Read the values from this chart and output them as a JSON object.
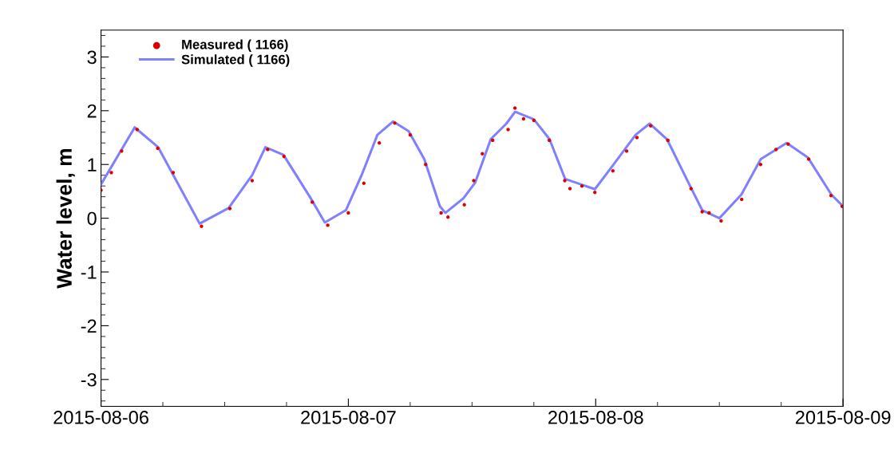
{
  "chart_data": {
    "type": "line",
    "ylabel": "Water level, m",
    "xlim": [
      "2015-08-06",
      "2015-08-09"
    ],
    "xticks": [
      {
        "value": "2015-08-06",
        "label": "2015-08-06"
      },
      {
        "value": "2015-08-07",
        "label": "2015-08-07"
      },
      {
        "value": "2015-08-08",
        "label": "2015-08-08"
      },
      {
        "value": "2015-08-09",
        "label": "2015-08-09"
      }
    ],
    "ylim": [
      -3.5,
      3.5
    ],
    "yticks": [
      -3,
      -2,
      -1,
      0,
      1,
      2,
      3
    ],
    "grid": false,
    "legend": "top left",
    "series": [
      {
        "name": "Measured ( 1166)",
        "type": "scatter",
        "marker": "circle",
        "color": "#dd0000",
        "x": [
          "2015-08-06T00:00",
          "2015-08-06T01:00",
          "2015-08-06T02:00",
          "2015-08-06T03:30",
          "2015-08-06T05:30",
          "2015-08-06T07:00",
          "2015-08-06T09:45",
          "2015-08-06T12:30",
          "2015-08-06T14:40",
          "2015-08-06T16:10",
          "2015-08-06T17:45",
          "2015-08-06T20:30",
          "2015-08-06T22:00",
          "2015-08-07T00:00",
          "2015-08-07T01:30",
          "2015-08-07T03:00",
          "2015-08-07T04:30",
          "2015-08-07T06:00",
          "2015-08-07T07:30",
          "2015-08-07T09:00",
          "2015-08-07T09:40",
          "2015-08-07T11:15",
          "2015-08-07T12:10",
          "2015-08-07T13:00",
          "2015-08-07T14:00",
          "2015-08-07T15:30",
          "2015-08-07T16:10",
          "2015-08-07T17:00",
          "2015-08-07T18:00",
          "2015-08-07T19:30",
          "2015-08-07T21:00",
          "2015-08-07T21:30",
          "2015-08-07T22:40",
          "2015-08-07T23:55",
          "2015-08-08T01:40",
          "2015-08-08T03:00",
          "2015-08-08T04:00",
          "2015-08-08T05:20",
          "2015-08-08T07:00",
          "2015-08-08T09:15",
          "2015-08-08T10:20",
          "2015-08-08T11:00",
          "2015-08-08T12:10",
          "2015-08-08T14:10",
          "2015-08-08T16:00",
          "2015-08-08T17:30",
          "2015-08-08T18:40",
          "2015-08-08T20:40",
          "2015-08-08T22:50",
          "2015-08-08T23:55"
        ],
        "values": [
          0.52,
          0.85,
          1.25,
          1.65,
          1.3,
          0.85,
          -0.15,
          0.18,
          0.7,
          1.28,
          1.15,
          0.3,
          -0.13,
          0.1,
          0.65,
          1.4,
          1.77,
          1.55,
          1.0,
          0.1,
          0.02,
          0.25,
          0.7,
          1.2,
          1.45,
          1.65,
          2.05,
          1.85,
          1.82,
          1.45,
          0.7,
          0.55,
          0.6,
          0.48,
          0.88,
          1.25,
          1.5,
          1.72,
          1.45,
          0.55,
          0.12,
          0.1,
          -0.05,
          0.35,
          1.0,
          1.28,
          1.38,
          1.1,
          0.42,
          0.22
        ]
      },
      {
        "name": "Simulated ( 1166)",
        "line_style": "solid",
        "color": "#8080ff",
        "x": [
          "2015-08-06T00:00",
          "2015-08-06T03:16",
          "2015-08-06T05:33",
          "2015-08-06T09:34",
          "2015-08-06T12:23",
          "2015-08-06T14:40",
          "2015-08-06T15:57",
          "2015-08-06T17:42",
          "2015-08-06T20:21",
          "2015-08-06T21:43",
          "2015-08-06T23:46",
          "2015-08-07T01:17",
          "2015-08-07T02:49",
          "2015-08-07T04:20",
          "2015-08-07T05:51",
          "2015-08-07T07:22",
          "2015-08-07T08:53",
          "2015-08-07T09:25",
          "2015-08-07T11:10",
          "2015-08-07T12:18",
          "2015-08-07T13:49",
          "2015-08-07T15:20",
          "2015-08-07T16:11",
          "2015-08-07T18:00",
          "2015-08-07T19:31",
          "2015-08-07T21:02",
          "2015-08-07T22:33",
          "2015-08-07T23:55",
          "2015-08-08T01:35",
          "2015-08-08T03:52",
          "2015-08-08T05:14",
          "2015-08-08T06:55",
          "2015-08-08T09:11",
          "2015-08-08T10:20",
          "2015-08-08T12:00",
          "2015-08-08T14:08",
          "2015-08-08T16:01",
          "2015-08-08T18:32",
          "2015-08-08T20:35",
          "2015-08-08T22:52",
          "2015-08-08T23:51"
        ],
        "values": [
          0.63,
          1.69,
          1.32,
          -0.1,
          0.19,
          0.8,
          1.32,
          1.18,
          0.37,
          -0.08,
          0.15,
          0.8,
          1.55,
          1.8,
          1.62,
          1.1,
          0.22,
          0.1,
          0.37,
          0.66,
          1.47,
          1.76,
          1.98,
          1.84,
          1.47,
          0.73,
          0.63,
          0.54,
          0.96,
          1.55,
          1.76,
          1.47,
          0.59,
          0.15,
          0.0,
          0.44,
          1.1,
          1.4,
          1.13,
          0.44,
          0.25
        ]
      }
    ]
  }
}
